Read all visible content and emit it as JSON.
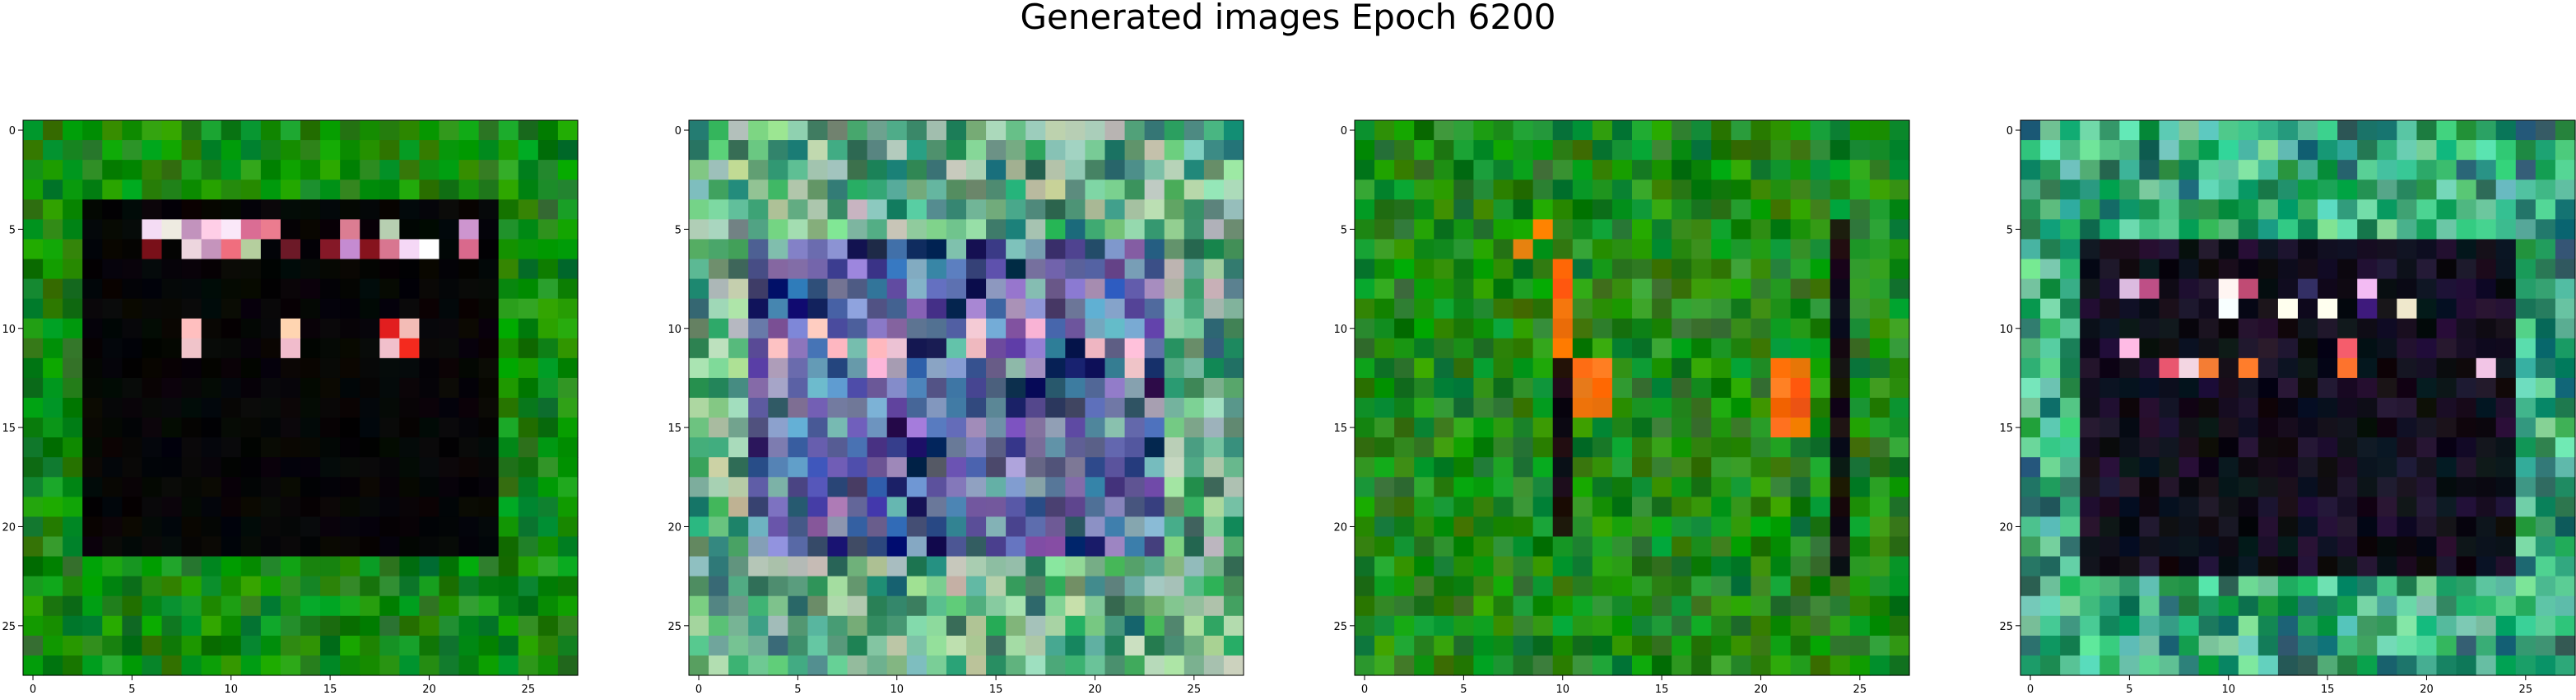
{
  "figure": {
    "title": "Generated images Epoch 6200"
  },
  "chart_data": [
    {
      "type": "heatmap",
      "variant": "image",
      "rows": 28,
      "cols": 28,
      "x_ticks": [
        "0",
        "5",
        "10",
        "15",
        "20",
        "25"
      ],
      "y_ticks": [
        "0",
        "5",
        "10",
        "15",
        "20",
        "25"
      ],
      "xlim": [
        0,
        27
      ],
      "ylim": [
        27,
        0
      ],
      "pattern": "green-frame-black-interior",
      "palette": {
        "bg": "#148a10",
        "dark": "#060606",
        "accent": "#f0d7e0"
      }
    },
    {
      "type": "heatmap",
      "variant": "image",
      "rows": 28,
      "cols": 28,
      "x_ticks": [
        "0",
        "5",
        "10",
        "15",
        "20",
        "25"
      ],
      "y_ticks": [
        "0",
        "5",
        "10",
        "15",
        "20",
        "25"
      ],
      "xlim": [
        0,
        27
      ],
      "ylim": [
        27,
        0
      ],
      "pattern": "pastel-noise-with-blue-interior",
      "palette": {
        "bg": "#6fb28f",
        "dark": "#3a4a88",
        "accent": "#f4c0cc"
      }
    },
    {
      "type": "heatmap",
      "variant": "image",
      "rows": 28,
      "cols": 28,
      "x_ticks": [
        "0",
        "5",
        "10",
        "15",
        "20",
        "25"
      ],
      "y_ticks": [
        "0",
        "5",
        "10",
        "15",
        "20",
        "25"
      ],
      "xlim": [
        0,
        27
      ],
      "ylim": [
        27,
        0
      ],
      "pattern": "green-field-with-orange-strokes",
      "palette": {
        "bg": "#1f8a1a",
        "dark": "#101010",
        "accent": "#ff6a10"
      }
    },
    {
      "type": "heatmap",
      "variant": "image",
      "rows": 28,
      "cols": 28,
      "x_ticks": [
        "0",
        "5",
        "10",
        "15",
        "20",
        "25"
      ],
      "y_ticks": [
        "0",
        "5",
        "10",
        "15",
        "20",
        "25"
      ],
      "xlim": [
        0,
        27
      ],
      "ylim": [
        27,
        0
      ],
      "pattern": "teal-frame-dark-interior",
      "palette": {
        "bg": "#2aa870",
        "dark": "#0a0610",
        "accent": "#ffffff"
      }
    }
  ]
}
